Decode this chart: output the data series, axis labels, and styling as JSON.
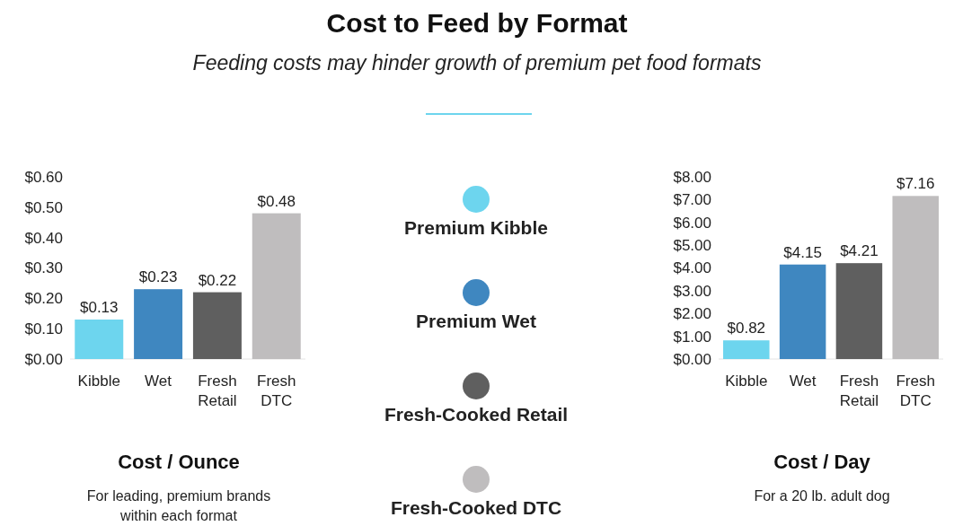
{
  "chart_data": [
    {
      "type": "other",
      "title": "Cost to Feed by Format",
      "subtitle": "Feeding costs may hinder growth of premium pet food formats"
    },
    {
      "type": "bar",
      "xlabel": "Cost / Ounce",
      "annotations": [
        "For leading, premium brands within each format"
      ],
      "categories": [
        "Kibble",
        "Wet",
        "Fresh Retail",
        "Fresh DTC"
      ],
      "stacked": true,
      "legend": "right",
      "ylim": [
        0,
        0.6
      ],
      "yticks": [
        {
          "value": 0,
          "label": "$0.00"
        },
        {
          "value": 0.1,
          "label": "$0.10"
        },
        {
          "value": 0.2,
          "label": "$0.20"
        },
        {
          "value": 0.3,
          "label": "$0.30"
        },
        {
          "value": 0.4,
          "label": "$0.40"
        },
        {
          "value": 0.5,
          "label": "$0.50"
        },
        {
          "value": 0.6,
          "label": "$0.60"
        }
      ],
      "series": [
        {
          "name": "Premium Kibble",
          "color": "#6dd5ee",
          "values": [
            0.13,
            null,
            null,
            null
          ],
          "value_labels": [
            "$0.13",
            null,
            null,
            null
          ]
        },
        {
          "name": "Premium Wet",
          "color": "#3f87c0",
          "values": [
            null,
            0.23,
            null,
            null
          ],
          "value_labels": [
            null,
            "$0.23",
            null,
            null
          ]
        },
        {
          "name": "Fresh-Cooked Retail",
          "color": "#5f5f5f",
          "values": [
            null,
            null,
            0.22,
            null
          ],
          "value_labels": [
            null,
            null,
            "$0.22",
            null
          ]
        },
        {
          "name": "Fresh-Cooked DTC",
          "color": "#bfbdbe",
          "values": [
            null,
            null,
            null,
            0.48
          ],
          "value_labels": [
            null,
            null,
            null,
            "$0.48"
          ]
        }
      ]
    },
    {
      "type": "bar",
      "xlabel": "Cost / Day",
      "annotations": [
        "For a 20 lb. adult dog"
      ],
      "categories": [
        "Kibble",
        "Wet",
        "Fresh Retail",
        "Fresh DTC"
      ],
      "stacked": true,
      "ylim": [
        0,
        8
      ],
      "yticks": [
        {
          "value": 0,
          "label": "$0.00"
        },
        {
          "value": 1,
          "label": "$1.00"
        },
        {
          "value": 2,
          "label": "$2.00"
        },
        {
          "value": 3,
          "label": "$3.00"
        },
        {
          "value": 4,
          "label": "$4.00"
        },
        {
          "value": 5,
          "label": "$5.00"
        },
        {
          "value": 6,
          "label": "$6.00"
        },
        {
          "value": 7,
          "label": "$7.00"
        },
        {
          "value": 8,
          "label": "$8.00"
        }
      ],
      "series": [
        {
          "color": "#6dd5ee",
          "values": [
            0.82,
            null,
            null,
            null
          ],
          "value_labels": [
            "$0.82",
            null,
            null,
            null
          ]
        },
        {
          "color": "#3f87c0",
          "values": [
            null,
            4.15,
            null,
            null
          ],
          "value_labels": [
            null,
            "$4.15",
            null,
            null
          ]
        },
        {
          "color": "#5f5f5f",
          "values": [
            null,
            null,
            4.21,
            null
          ],
          "value_labels": [
            null,
            null,
            "$4.21",
            null
          ]
        },
        {
          "color": "#bfbdbe",
          "values": [
            null,
            null,
            null,
            7.16
          ],
          "value_labels": [
            null,
            null,
            null,
            "$7.16"
          ]
        }
      ]
    }
  ]
}
